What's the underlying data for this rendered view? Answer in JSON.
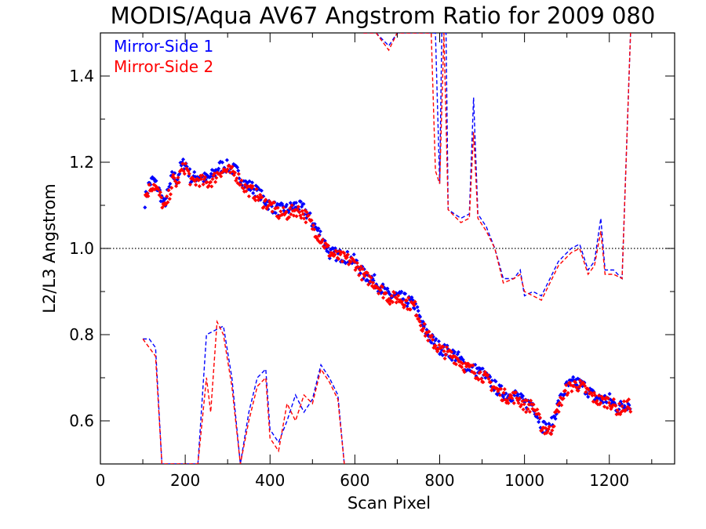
{
  "chart_data": {
    "type": "scatter",
    "title": "MODIS/Aqua AV67 Angstrom Ratio for 2009 080",
    "xlabel": "Scan Pixel",
    "ylabel": "L2/L3 Angstrom",
    "xlim": [
      0,
      1354
    ],
    "ylim": [
      0.5,
      1.5
    ],
    "x_ticks": [
      0,
      200,
      400,
      600,
      800,
      1000,
      1200
    ],
    "x_tick_labels": [
      "0",
      "200",
      "400",
      "600",
      "800",
      "1000",
      "1200"
    ],
    "y_ticks": [
      0.6,
      0.8,
      1.0,
      1.2,
      1.4
    ],
    "y_tick_labels": [
      "0.6",
      "0.8",
      "1.0",
      "1.2",
      "1.4"
    ],
    "reference_line": 1.0,
    "legend_position": "top-left",
    "series": [
      {
        "name": "Mirror-Side 1",
        "color": "#0000ff",
        "mean_points": [
          [
            105,
            1.11
          ],
          [
            115,
            1.15
          ],
          [
            125,
            1.16
          ],
          [
            140,
            1.13
          ],
          [
            150,
            1.1
          ],
          [
            160,
            1.13
          ],
          [
            170,
            1.17
          ],
          [
            180,
            1.16
          ],
          [
            190,
            1.19
          ],
          [
            200,
            1.2
          ],
          [
            215,
            1.16
          ],
          [
            230,
            1.17
          ],
          [
            250,
            1.16
          ],
          [
            265,
            1.17
          ],
          [
            280,
            1.19
          ],
          [
            300,
            1.19
          ],
          [
            320,
            1.18
          ],
          [
            340,
            1.15
          ],
          [
            360,
            1.14
          ],
          [
            380,
            1.12
          ],
          [
            400,
            1.1
          ],
          [
            420,
            1.09
          ],
          [
            440,
            1.09
          ],
          [
            460,
            1.1
          ],
          [
            480,
            1.09
          ],
          [
            500,
            1.06
          ],
          [
            520,
            1.03
          ],
          [
            540,
            0.99
          ],
          [
            560,
            0.985
          ],
          [
            580,
            0.98
          ],
          [
            600,
            0.97
          ],
          [
            620,
            0.94
          ],
          [
            640,
            0.93
          ],
          [
            660,
            0.91
          ],
          [
            680,
            0.89
          ],
          [
            700,
            0.89
          ],
          [
            720,
            0.88
          ],
          [
            740,
            0.87
          ],
          [
            760,
            0.82
          ],
          [
            780,
            0.79
          ],
          [
            800,
            0.77
          ],
          [
            820,
            0.76
          ],
          [
            840,
            0.75
          ],
          [
            860,
            0.73
          ],
          [
            880,
            0.72
          ],
          [
            900,
            0.71
          ],
          [
            920,
            0.69
          ],
          [
            940,
            0.67
          ],
          [
            960,
            0.66
          ],
          [
            980,
            0.66
          ],
          [
            1000,
            0.64
          ],
          [
            1020,
            0.64
          ],
          [
            1040,
            0.59
          ],
          [
            1060,
            0.58
          ],
          [
            1080,
            0.64
          ],
          [
            1100,
            0.68
          ],
          [
            1120,
            0.69
          ],
          [
            1140,
            0.68
          ],
          [
            1160,
            0.66
          ],
          [
            1180,
            0.65
          ],
          [
            1200,
            0.65
          ],
          [
            1220,
            0.63
          ],
          [
            1240,
            0.64
          ],
          [
            1250,
            0.64
          ]
        ],
        "upper_envelope": [
          [
            620,
            1.5
          ],
          [
            650,
            1.5
          ],
          [
            680,
            1.47
          ],
          [
            700,
            1.5
          ],
          [
            760,
            1.5
          ],
          [
            790,
            1.5
          ],
          [
            800,
            1.15
          ],
          [
            805,
            1.5
          ],
          [
            815,
            1.5
          ],
          [
            820,
            1.09
          ],
          [
            850,
            1.07
          ],
          [
            870,
            1.08
          ],
          [
            880,
            1.35
          ],
          [
            890,
            1.08
          ],
          [
            910,
            1.05
          ],
          [
            930,
            1.0
          ],
          [
            950,
            0.93
          ],
          [
            975,
            0.93
          ],
          [
            990,
            0.95
          ],
          [
            1000,
            0.89
          ],
          [
            1020,
            0.9
          ],
          [
            1040,
            0.89
          ],
          [
            1060,
            0.93
          ],
          [
            1080,
            0.97
          ],
          [
            1110,
            1.0
          ],
          [
            1130,
            1.01
          ],
          [
            1150,
            0.95
          ],
          [
            1165,
            0.97
          ],
          [
            1180,
            1.07
          ],
          [
            1190,
            0.95
          ],
          [
            1210,
            0.95
          ],
          [
            1230,
            0.93
          ],
          [
            1250,
            1.5
          ]
        ],
        "lower_envelope": [
          [
            100,
            0.79
          ],
          [
            115,
            0.79
          ],
          [
            130,
            0.77
          ],
          [
            145,
            0.5
          ],
          [
            230,
            0.5
          ],
          [
            250,
            0.8
          ],
          [
            270,
            0.81
          ],
          [
            290,
            0.82
          ],
          [
            310,
            0.7
          ],
          [
            330,
            0.5
          ],
          [
            350,
            0.62
          ],
          [
            370,
            0.7
          ],
          [
            390,
            0.72
          ],
          [
            400,
            0.58
          ],
          [
            420,
            0.55
          ],
          [
            440,
            0.6
          ],
          [
            460,
            0.66
          ],
          [
            480,
            0.62
          ],
          [
            500,
            0.65
          ],
          [
            520,
            0.73
          ],
          [
            540,
            0.7
          ],
          [
            560,
            0.66
          ],
          [
            575,
            0.5
          ]
        ]
      },
      {
        "name": "Mirror-Side 2",
        "color": "#ff0000",
        "mean_points": [
          [
            105,
            1.12
          ],
          [
            115,
            1.14
          ],
          [
            125,
            1.15
          ],
          [
            140,
            1.12
          ],
          [
            150,
            1.09
          ],
          [
            160,
            1.12
          ],
          [
            170,
            1.16
          ],
          [
            180,
            1.15
          ],
          [
            190,
            1.18
          ],
          [
            200,
            1.19
          ],
          [
            215,
            1.15
          ],
          [
            230,
            1.16
          ],
          [
            250,
            1.15
          ],
          [
            265,
            1.16
          ],
          [
            280,
            1.18
          ],
          [
            300,
            1.18
          ],
          [
            320,
            1.17
          ],
          [
            340,
            1.14
          ],
          [
            360,
            1.13
          ],
          [
            380,
            1.11
          ],
          [
            400,
            1.1
          ],
          [
            420,
            1.08
          ],
          [
            440,
            1.08
          ],
          [
            460,
            1.09
          ],
          [
            480,
            1.08
          ],
          [
            500,
            1.05
          ],
          [
            520,
            1.02
          ],
          [
            540,
            0.99
          ],
          [
            560,
            0.98
          ],
          [
            580,
            0.975
          ],
          [
            600,
            0.965
          ],
          [
            620,
            0.935
          ],
          [
            640,
            0.925
          ],
          [
            660,
            0.905
          ],
          [
            680,
            0.885
          ],
          [
            700,
            0.885
          ],
          [
            720,
            0.875
          ],
          [
            740,
            0.865
          ],
          [
            760,
            0.815
          ],
          [
            780,
            0.785
          ],
          [
            800,
            0.765
          ],
          [
            820,
            0.755
          ],
          [
            840,
            0.745
          ],
          [
            860,
            0.725
          ],
          [
            880,
            0.715
          ],
          [
            900,
            0.705
          ],
          [
            920,
            0.685
          ],
          [
            940,
            0.665
          ],
          [
            960,
            0.655
          ],
          [
            980,
            0.655
          ],
          [
            1000,
            0.635
          ],
          [
            1020,
            0.635
          ],
          [
            1040,
            0.585
          ],
          [
            1060,
            0.575
          ],
          [
            1080,
            0.635
          ],
          [
            1100,
            0.675
          ],
          [
            1120,
            0.685
          ],
          [
            1140,
            0.675
          ],
          [
            1160,
            0.655
          ],
          [
            1180,
            0.645
          ],
          [
            1200,
            0.645
          ],
          [
            1220,
            0.625
          ],
          [
            1240,
            0.635
          ],
          [
            1250,
            0.635
          ]
        ],
        "upper_envelope": [
          [
            620,
            1.5
          ],
          [
            650,
            1.5
          ],
          [
            680,
            1.46
          ],
          [
            700,
            1.5
          ],
          [
            760,
            1.5
          ],
          [
            780,
            1.5
          ],
          [
            790,
            1.18
          ],
          [
            800,
            1.15
          ],
          [
            810,
            1.5
          ],
          [
            820,
            1.09
          ],
          [
            850,
            1.06
          ],
          [
            870,
            1.07
          ],
          [
            880,
            1.27
          ],
          [
            890,
            1.07
          ],
          [
            910,
            1.04
          ],
          [
            930,
            1.0
          ],
          [
            950,
            0.92
          ],
          [
            975,
            0.93
          ],
          [
            990,
            0.94
          ],
          [
            1000,
            0.9
          ],
          [
            1020,
            0.89
          ],
          [
            1040,
            0.88
          ],
          [
            1060,
            0.92
          ],
          [
            1080,
            0.96
          ],
          [
            1110,
            0.99
          ],
          [
            1130,
            1.0
          ],
          [
            1150,
            0.94
          ],
          [
            1165,
            0.96
          ],
          [
            1180,
            1.04
          ],
          [
            1190,
            0.94
          ],
          [
            1210,
            0.94
          ],
          [
            1230,
            0.93
          ],
          [
            1250,
            1.5
          ]
        ],
        "lower_envelope": [
          [
            100,
            0.79
          ],
          [
            115,
            0.77
          ],
          [
            130,
            0.75
          ],
          [
            145,
            0.5
          ],
          [
            230,
            0.5
          ],
          [
            250,
            0.7
          ],
          [
            260,
            0.62
          ],
          [
            275,
            0.83
          ],
          [
            290,
            0.8
          ],
          [
            310,
            0.68
          ],
          [
            330,
            0.5
          ],
          [
            350,
            0.6
          ],
          [
            370,
            0.68
          ],
          [
            390,
            0.7
          ],
          [
            400,
            0.56
          ],
          [
            420,
            0.53
          ],
          [
            440,
            0.64
          ],
          [
            460,
            0.6
          ],
          [
            480,
            0.66
          ],
          [
            500,
            0.64
          ],
          [
            520,
            0.72
          ],
          [
            540,
            0.69
          ],
          [
            560,
            0.65
          ],
          [
            575,
            0.5
          ]
        ]
      }
    ]
  }
}
